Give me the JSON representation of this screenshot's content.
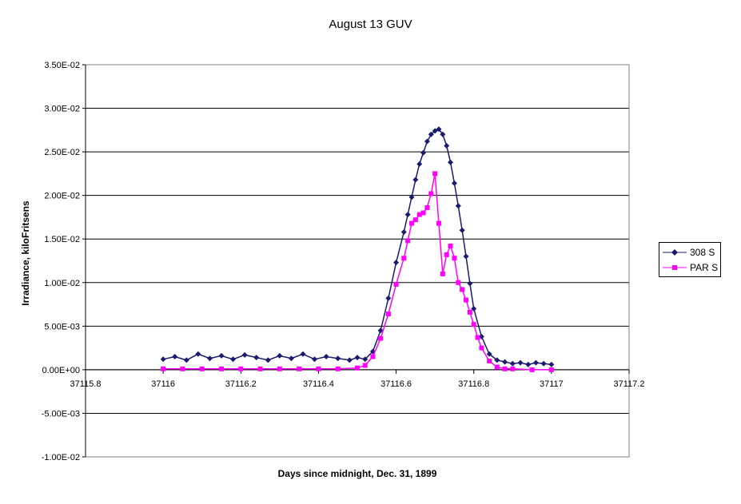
{
  "chart_data": {
    "type": "scatter",
    "title": "August 13 GUV",
    "xlabel": "Days since midnight, Dec. 31, 1899",
    "ylabel": "Irradiance, kiloFritsens",
    "xlim": [
      37115.8,
      37117.2
    ],
    "ylim": [
      -0.01,
      0.035
    ],
    "x_ticks": [
      "37115.8",
      "37116",
      "37116.2",
      "37116.4",
      "37116.6",
      "37116.8",
      "37117",
      "37117.2"
    ],
    "y_ticks": [
      "-1.00E-02",
      "-5.00E-03",
      "0.00E+00",
      "5.00E-03",
      "1.00E-02",
      "1.50E-02",
      "2.00E-02",
      "2.50E-02",
      "3.00E-02",
      "3.50E-02"
    ],
    "grid": "horizontal",
    "legend_position": "right",
    "series": [
      {
        "name": "308 S",
        "color": "#1a1a6e",
        "marker": "diamond",
        "x": [
          37116.0,
          37116.03,
          37116.06,
          37116.09,
          37116.12,
          37116.15,
          37116.18,
          37116.21,
          37116.24,
          37116.27,
          37116.3,
          37116.33,
          37116.36,
          37116.39,
          37116.42,
          37116.45,
          37116.48,
          37116.5,
          37116.52,
          37116.54,
          37116.56,
          37116.58,
          37116.6,
          37116.62,
          37116.63,
          37116.64,
          37116.65,
          37116.66,
          37116.67,
          37116.68,
          37116.69,
          37116.7,
          37116.71,
          37116.72,
          37116.73,
          37116.74,
          37116.75,
          37116.76,
          37116.77,
          37116.78,
          37116.79,
          37116.8,
          37116.82,
          37116.84,
          37116.86,
          37116.88,
          37116.9,
          37116.92,
          37116.94,
          37116.96,
          37116.98,
          37117.0
        ],
        "y": [
          0.0012,
          0.0015,
          0.0011,
          0.0018,
          0.0013,
          0.0016,
          0.0012,
          0.0017,
          0.0014,
          0.0011,
          0.0016,
          0.0013,
          0.0018,
          0.0012,
          0.0015,
          0.0013,
          0.0011,
          0.0014,
          0.0012,
          0.0021,
          0.0045,
          0.0082,
          0.0123,
          0.0158,
          0.0178,
          0.0198,
          0.0218,
          0.0236,
          0.0249,
          0.0262,
          0.027,
          0.0274,
          0.0276,
          0.027,
          0.0257,
          0.0238,
          0.0214,
          0.0188,
          0.016,
          0.013,
          0.0099,
          0.007,
          0.0038,
          0.0018,
          0.0011,
          0.0009,
          0.0007,
          0.0008,
          0.0006,
          0.0008,
          0.0007,
          0.0006
        ]
      },
      {
        "name": "PAR S",
        "color": "#ff00ff",
        "marker": "square",
        "x": [
          37116.0,
          37116.05,
          37116.1,
          37116.15,
          37116.2,
          37116.25,
          37116.3,
          37116.35,
          37116.4,
          37116.45,
          37116.5,
          37116.52,
          37116.54,
          37116.56,
          37116.58,
          37116.6,
          37116.62,
          37116.63,
          37116.64,
          37116.65,
          37116.66,
          37116.67,
          37116.68,
          37116.69,
          37116.7,
          37116.71,
          37116.72,
          37116.73,
          37116.74,
          37116.75,
          37116.76,
          37116.77,
          37116.78,
          37116.79,
          37116.8,
          37116.81,
          37116.82,
          37116.84,
          37116.86,
          37116.88,
          37116.9,
          37116.95,
          37117.0
        ],
        "y": [
          0.0001,
          0.0001,
          0.0001,
          0.0001,
          0.0001,
          0.0001,
          0.0001,
          0.0001,
          0.0001,
          0.0001,
          0.0002,
          0.0005,
          0.0015,
          0.0036,
          0.0064,
          0.0098,
          0.0128,
          0.0148,
          0.0168,
          0.0172,
          0.0178,
          0.018,
          0.0186,
          0.0202,
          0.0225,
          0.0168,
          0.011,
          0.0132,
          0.0142,
          0.0128,
          0.01,
          0.0092,
          0.008,
          0.0066,
          0.0052,
          0.0037,
          0.0025,
          0.001,
          0.0003,
          0.0001,
          0.0001,
          0.0,
          0.0
        ]
      }
    ]
  }
}
